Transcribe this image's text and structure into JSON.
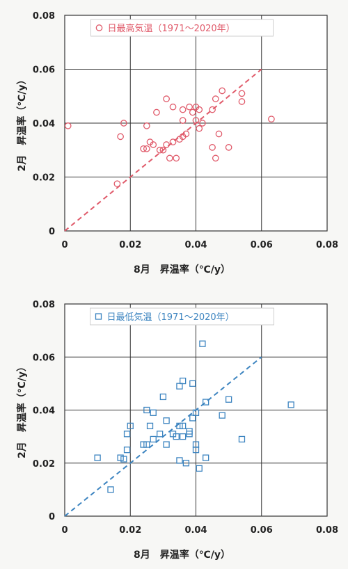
{
  "chart_data": [
    {
      "type": "scatter",
      "marker": "circle",
      "color": "#e05a6a",
      "legend": "日最高気温（1971～2020年）",
      "legend_position": "top-center",
      "xlabel": "8月　昇温率（℃/y）",
      "ylabel": "2月　昇温率（℃/y）",
      "xlim": [
        0,
        0.08
      ],
      "ylim": [
        0,
        0.08
      ],
      "x_ticks": [
        "0",
        "0.02",
        "0.04",
        "0.06",
        "0.08"
      ],
      "y_ticks": [
        "0",
        "0.02",
        "0.04",
        "0.06",
        "0.08"
      ],
      "grid": true,
      "reference_line": {
        "style": "dashed",
        "from": [
          0,
          0
        ],
        "to": [
          0.06,
          0.06
        ]
      },
      "points": [
        {
          "x": 0.001,
          "y": 0.039
        },
        {
          "x": 0.016,
          "y": 0.0175
        },
        {
          "x": 0.017,
          "y": 0.035
        },
        {
          "x": 0.018,
          "y": 0.04
        },
        {
          "x": 0.024,
          "y": 0.0305
        },
        {
          "x": 0.025,
          "y": 0.039
        },
        {
          "x": 0.025,
          "y": 0.0305
        },
        {
          "x": 0.026,
          "y": 0.033
        },
        {
          "x": 0.027,
          "y": 0.032
        },
        {
          "x": 0.028,
          "y": 0.044
        },
        {
          "x": 0.029,
          "y": 0.03
        },
        {
          "x": 0.03,
          "y": 0.03
        },
        {
          "x": 0.031,
          "y": 0.049
        },
        {
          "x": 0.031,
          "y": 0.032
        },
        {
          "x": 0.032,
          "y": 0.027
        },
        {
          "x": 0.033,
          "y": 0.033
        },
        {
          "x": 0.033,
          "y": 0.046
        },
        {
          "x": 0.034,
          "y": 0.027
        },
        {
          "x": 0.035,
          "y": 0.034
        },
        {
          "x": 0.036,
          "y": 0.035
        },
        {
          "x": 0.036,
          "y": 0.045
        },
        {
          "x": 0.036,
          "y": 0.041
        },
        {
          "x": 0.037,
          "y": 0.036
        },
        {
          "x": 0.038,
          "y": 0.046
        },
        {
          "x": 0.039,
          "y": 0.044
        },
        {
          "x": 0.04,
          "y": 0.041
        },
        {
          "x": 0.04,
          "y": 0.046
        },
        {
          "x": 0.041,
          "y": 0.038
        },
        {
          "x": 0.041,
          "y": 0.045
        },
        {
          "x": 0.042,
          "y": 0.04
        },
        {
          "x": 0.045,
          "y": 0.045
        },
        {
          "x": 0.045,
          "y": 0.031
        },
        {
          "x": 0.046,
          "y": 0.027
        },
        {
          "x": 0.046,
          "y": 0.049
        },
        {
          "x": 0.047,
          "y": 0.036
        },
        {
          "x": 0.048,
          "y": 0.052
        },
        {
          "x": 0.05,
          "y": 0.031
        },
        {
          "x": 0.054,
          "y": 0.051
        },
        {
          "x": 0.054,
          "y": 0.048
        },
        {
          "x": 0.063,
          "y": 0.0415
        }
      ]
    },
    {
      "type": "scatter",
      "marker": "square",
      "color": "#3c84c0",
      "legend": "日最低気温（1971～2020年）",
      "legend_position": "top-center",
      "xlabel": "8月　昇温率（℃/y）",
      "ylabel": "2月　昇温率（℃/y）",
      "xlim": [
        0,
        0.08
      ],
      "ylim": [
        0,
        0.08
      ],
      "x_ticks": [
        "0",
        "0.02",
        "0.04",
        "0.06",
        "0.08"
      ],
      "y_ticks": [
        "0",
        "0.02",
        "0.04",
        "0.06",
        "0.08"
      ],
      "grid": true,
      "reference_line": {
        "style": "dashed",
        "from": [
          0,
          0
        ],
        "to": [
          0.06,
          0.06
        ]
      },
      "points": [
        {
          "x": 0.01,
          "y": 0.022
        },
        {
          "x": 0.014,
          "y": 0.01
        },
        {
          "x": 0.017,
          "y": 0.022
        },
        {
          "x": 0.018,
          "y": 0.0215
        },
        {
          "x": 0.019,
          "y": 0.025
        },
        {
          "x": 0.02,
          "y": 0.034
        },
        {
          "x": 0.019,
          "y": 0.031
        },
        {
          "x": 0.024,
          "y": 0.027
        },
        {
          "x": 0.025,
          "y": 0.027
        },
        {
          "x": 0.025,
          "y": 0.04
        },
        {
          "x": 0.026,
          "y": 0.034
        },
        {
          "x": 0.027,
          "y": 0.029
        },
        {
          "x": 0.027,
          "y": 0.039
        },
        {
          "x": 0.029,
          "y": 0.031
        },
        {
          "x": 0.03,
          "y": 0.045
        },
        {
          "x": 0.031,
          "y": 0.027
        },
        {
          "x": 0.031,
          "y": 0.036
        },
        {
          "x": 0.033,
          "y": 0.031
        },
        {
          "x": 0.034,
          "y": 0.03
        },
        {
          "x": 0.035,
          "y": 0.021
        },
        {
          "x": 0.035,
          "y": 0.034
        },
        {
          "x": 0.035,
          "y": 0.049
        },
        {
          "x": 0.036,
          "y": 0.051
        },
        {
          "x": 0.036,
          "y": 0.034
        },
        {
          "x": 0.036,
          "y": 0.03
        },
        {
          "x": 0.037,
          "y": 0.02
        },
        {
          "x": 0.038,
          "y": 0.032
        },
        {
          "x": 0.038,
          "y": 0.031
        },
        {
          "x": 0.039,
          "y": 0.05
        },
        {
          "x": 0.039,
          "y": 0.037
        },
        {
          "x": 0.04,
          "y": 0.039
        },
        {
          "x": 0.04,
          "y": 0.027
        },
        {
          "x": 0.04,
          "y": 0.025
        },
        {
          "x": 0.041,
          "y": 0.018
        },
        {
          "x": 0.042,
          "y": 0.065
        },
        {
          "x": 0.043,
          "y": 0.043
        },
        {
          "x": 0.043,
          "y": 0.022
        },
        {
          "x": 0.048,
          "y": 0.038
        },
        {
          "x": 0.05,
          "y": 0.044
        },
        {
          "x": 0.054,
          "y": 0.029
        },
        {
          "x": 0.069,
          "y": 0.042
        }
      ]
    }
  ]
}
